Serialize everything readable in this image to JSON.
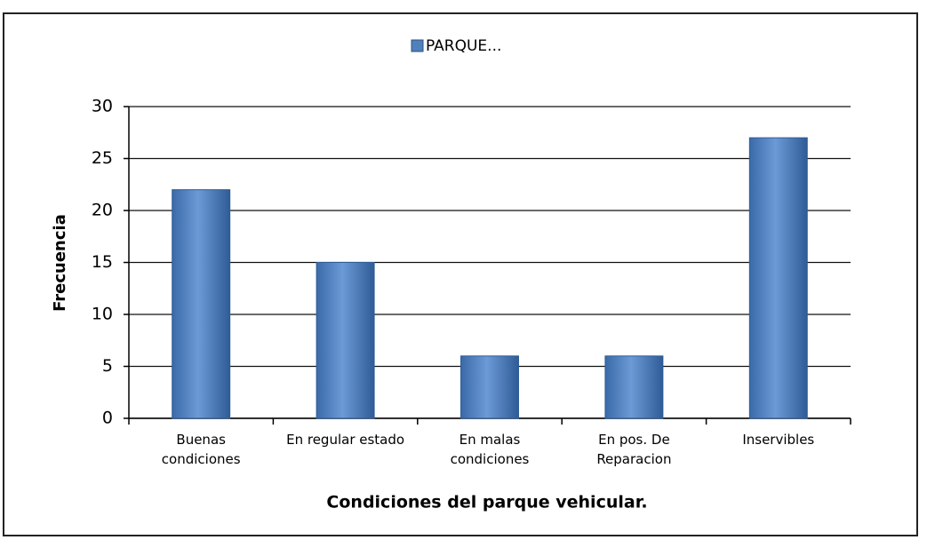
{
  "chart_data": {
    "type": "bar",
    "legend": "PARQUE...",
    "x_label": "Condiciones del parque vehicular.",
    "y_label": "Frecuencia",
    "categories": [
      "Buenas\ncondiciones",
      "En regular estado",
      "En malas\ncondiciones",
      "En pos. De\nReparacion",
      "Inservibles"
    ],
    "values": [
      22,
      15,
      6,
      6,
      27
    ],
    "color": "#4f81bd",
    "ylim": [
      0,
      30
    ],
    "yticks": [
      0,
      5,
      10,
      15,
      20,
      25,
      30
    ],
    "grid": true
  }
}
